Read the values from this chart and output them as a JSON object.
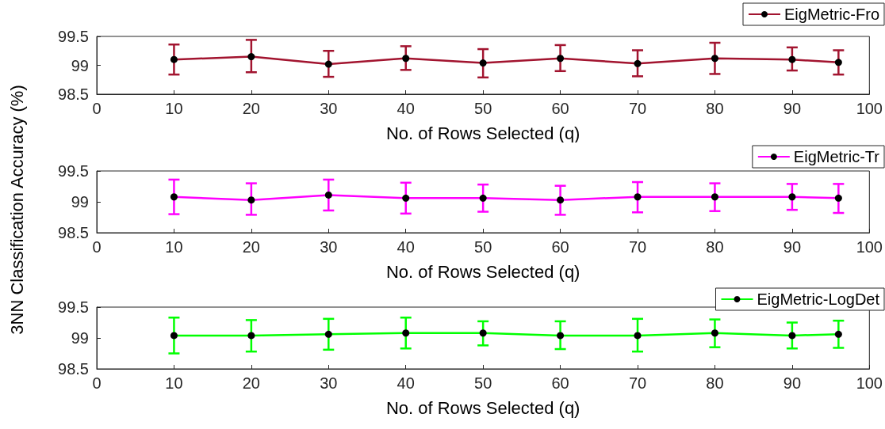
{
  "chart_data": [
    {
      "type": "line",
      "xlabel": "No. of Rows Selected (q)",
      "x": [
        10,
        20,
        30,
        40,
        50,
        60,
        70,
        80,
        90,
        96
      ],
      "series": [
        {
          "name": "EigMetric-Fro",
          "color": "#a2142f",
          "values": [
            99.1,
            99.15,
            99.02,
            99.12,
            99.04,
            99.12,
            99.03,
            99.12,
            99.1,
            99.05
          ],
          "errors": [
            [
              98.84,
              99.36
            ],
            [
              98.88,
              99.44
            ],
            [
              98.8,
              99.25
            ],
            [
              98.92,
              99.33
            ],
            [
              98.79,
              99.28
            ],
            [
              98.9,
              99.35
            ],
            [
              98.81,
              99.26
            ],
            [
              98.85,
              99.39
            ],
            [
              98.91,
              99.31
            ],
            [
              98.84,
              99.26
            ]
          ]
        }
      ],
      "xlim": [
        0,
        100
      ],
      "xticks": [
        0,
        10,
        20,
        30,
        40,
        50,
        60,
        70,
        80,
        90,
        100
      ],
      "ylim": [
        98.5,
        99.5
      ],
      "yticks": [
        98.5,
        99,
        99.5
      ],
      "marker": "circle",
      "legend": "top right",
      "grid": false
    },
    {
      "type": "line",
      "xlabel": "No. of Rows Selected (q)",
      "ylabel": "3NN Classification Accuracy (%)",
      "x": [
        10,
        20,
        30,
        40,
        50,
        60,
        70,
        80,
        90,
        96
      ],
      "series": [
        {
          "name": "EigMetric-Tr",
          "color": "#ff00ff",
          "values": [
            99.08,
            99.03,
            99.11,
            99.06,
            99.06,
            99.03,
            99.08,
            99.08,
            99.08,
            99.06
          ],
          "errors": [
            [
              98.8,
              99.36
            ],
            [
              98.79,
              99.3
            ],
            [
              98.86,
              99.36
            ],
            [
              98.81,
              99.31
            ],
            [
              98.84,
              99.28
            ],
            [
              98.79,
              99.26
            ],
            [
              98.83,
              99.32
            ],
            [
              98.85,
              99.3
            ],
            [
              98.87,
              99.29
            ],
            [
              98.82,
              99.29
            ]
          ]
        }
      ],
      "xlim": [
        0,
        100
      ],
      "xticks": [
        0,
        10,
        20,
        30,
        40,
        50,
        60,
        70,
        80,
        90,
        100
      ],
      "ylim": [
        98.5,
        99.5
      ],
      "yticks": [
        98.5,
        99,
        99.5
      ],
      "marker": "circle",
      "legend": "top right",
      "grid": false
    },
    {
      "type": "line",
      "xlabel": "No. of Rows Selected (q)",
      "x": [
        10,
        20,
        30,
        40,
        50,
        60,
        70,
        80,
        90,
        96
      ],
      "series": [
        {
          "name": "EigMetric-LogDet",
          "color": "#00ff00",
          "values": [
            99.04,
            99.04,
            99.06,
            99.08,
            99.08,
            99.04,
            99.04,
            99.08,
            99.04,
            99.06
          ],
          "errors": [
            [
              98.75,
              99.33
            ],
            [
              98.78,
              99.29
            ],
            [
              98.81,
              99.31
            ],
            [
              98.83,
              99.33
            ],
            [
              98.88,
              99.27
            ],
            [
              98.82,
              99.27
            ],
            [
              98.78,
              99.31
            ],
            [
              98.85,
              99.3
            ],
            [
              98.83,
              99.25
            ],
            [
              98.84,
              99.28
            ]
          ]
        }
      ],
      "xlim": [
        0,
        100
      ],
      "xticks": [
        0,
        10,
        20,
        30,
        40,
        50,
        60,
        70,
        80,
        90,
        100
      ],
      "ylim": [
        98.5,
        99.5
      ],
      "yticks": [
        98.5,
        99,
        99.5
      ],
      "marker": "circle",
      "legend": "top right",
      "grid": false
    }
  ]
}
